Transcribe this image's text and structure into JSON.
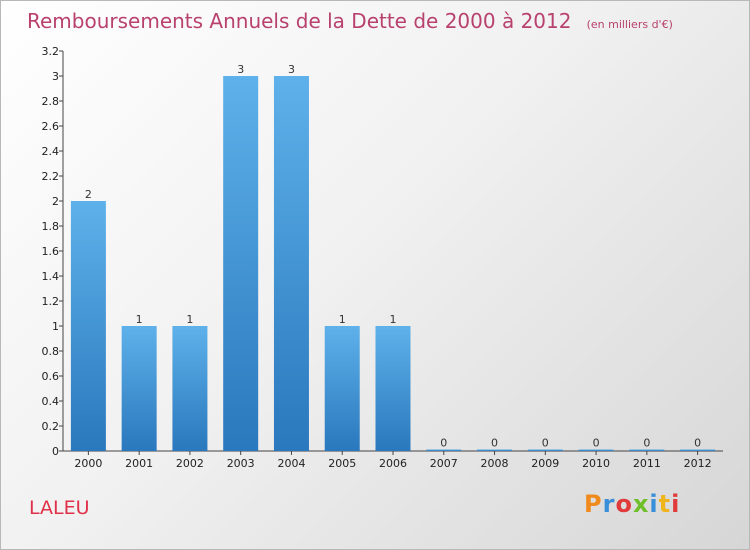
{
  "chart_data": {
    "type": "bar",
    "title": "Remboursements Annuels de la Dette de 2000 à 2012",
    "unit": "(en milliers d'€)",
    "categories": [
      "2000",
      "2001",
      "2002",
      "2003",
      "2004",
      "2005",
      "2006",
      "2007",
      "2008",
      "2009",
      "2010",
      "2011",
      "2012"
    ],
    "values": [
      2,
      1,
      1,
      3,
      3,
      1,
      1,
      0,
      0,
      0,
      0,
      0,
      0
    ],
    "data_labels": [
      "2",
      "1",
      "1",
      "3",
      "3",
      "1",
      "1",
      "0",
      "0",
      "0",
      "0",
      "0",
      "0"
    ],
    "y_ticks": [
      {
        "value": 0,
        "label": "0"
      },
      {
        "value": 0.2,
        "label": "0.2"
      },
      {
        "value": 0.4,
        "label": "0.4"
      },
      {
        "value": 0.6,
        "label": "0.6"
      },
      {
        "value": 0.8,
        "label": "0.8"
      },
      {
        "value": 1,
        "label": "1"
      },
      {
        "value": 1.2,
        "label": "1.2"
      },
      {
        "value": 1.4,
        "label": "1.4"
      },
      {
        "value": 1.6,
        "label": "1.6"
      },
      {
        "value": 1.8,
        "label": "1.8"
      },
      {
        "value": 2,
        "label": "2"
      },
      {
        "value": 2.2,
        "label": "2.2"
      },
      {
        "value": 2.4,
        "label": "2.4"
      },
      {
        "value": 2.6,
        "label": "2.6"
      },
      {
        "value": 2.8,
        "label": "2.8"
      },
      {
        "value": 3,
        "label": "3"
      },
      {
        "value": 3.2,
        "label": "3.2"
      }
    ],
    "ylim": [
      0,
      3.2
    ],
    "grid": false,
    "bar_color": "#5aace6"
  },
  "footer": {
    "commune": "LALEU",
    "brand": "Proxiti"
  },
  "colors": {
    "title": "#b8416e",
    "commune": "#e0314a",
    "brand_letters": [
      "#f08a1c",
      "#3a8fd8",
      "#e03a3a",
      "#6fbf2a",
      "#3a8fd8",
      "#f0b41c",
      "#e03a3a"
    ]
  }
}
